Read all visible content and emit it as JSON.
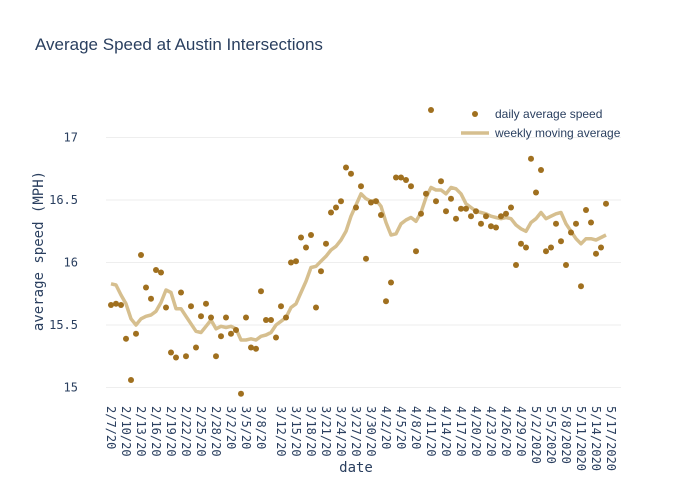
{
  "chart_data": {
    "type": "scatter",
    "title": "Average Speed at Austin Intersections",
    "xlabel": "date",
    "ylabel": "average speed (MPH)",
    "x_range": [
      "2020-02-06",
      "2020-05-19"
    ],
    "ylim": [
      14.9,
      17.3
    ],
    "y_ticks": [
      15,
      15.5,
      16,
      16.5,
      17
    ],
    "x_ticks": [
      {
        "date": "2020-02-07",
        "label": "2/7/20"
      },
      {
        "date": "2020-02-10",
        "label": "2/10/20"
      },
      {
        "date": "2020-02-13",
        "label": "2/13/20"
      },
      {
        "date": "2020-02-16",
        "label": "2/16/20"
      },
      {
        "date": "2020-02-19",
        "label": "2/19/20"
      },
      {
        "date": "2020-02-22",
        "label": "2/22/20"
      },
      {
        "date": "2020-02-25",
        "label": "2/25/20"
      },
      {
        "date": "2020-02-28",
        "label": "2/28/20"
      },
      {
        "date": "2020-03-02",
        "label": "3/2/20"
      },
      {
        "date": "2020-03-05",
        "label": "3/5/20"
      },
      {
        "date": "2020-03-08",
        "label": "3/8/20"
      },
      {
        "date": "2020-03-12",
        "label": "3/12/20"
      },
      {
        "date": "2020-03-15",
        "label": "3/15/20"
      },
      {
        "date": "2020-03-18",
        "label": "3/18/20"
      },
      {
        "date": "2020-03-21",
        "label": "3/21/20"
      },
      {
        "date": "2020-03-24",
        "label": "3/24/20"
      },
      {
        "date": "2020-03-27",
        "label": "3/27/20"
      },
      {
        "date": "2020-03-30",
        "label": "3/30/20"
      },
      {
        "date": "2020-04-02",
        "label": "4/2/20"
      },
      {
        "date": "2020-04-05",
        "label": "4/5/20"
      },
      {
        "date": "2020-04-08",
        "label": "4/8/20"
      },
      {
        "date": "2020-04-11",
        "label": "4/11/20"
      },
      {
        "date": "2020-04-14",
        "label": "4/14/20"
      },
      {
        "date": "2020-04-17",
        "label": "4/17/20"
      },
      {
        "date": "2020-04-20",
        "label": "4/20/20"
      },
      {
        "date": "2020-04-23",
        "label": "4/23/20"
      },
      {
        "date": "2020-04-26",
        "label": "4/26/20"
      },
      {
        "date": "2020-04-29",
        "label": "4/29/20"
      },
      {
        "date": "2020-05-02",
        "label": "5/2/2020"
      },
      {
        "date": "2020-05-05",
        "label": "5/5/2020"
      },
      {
        "date": "2020-05-08",
        "label": "5/8/2020"
      },
      {
        "date": "2020-05-11",
        "label": "5/11/2020"
      },
      {
        "date": "2020-05-14",
        "label": "5/14/2020"
      },
      {
        "date": "2020-05-17",
        "label": "5/17/2020"
      }
    ],
    "legend_position": "top-right",
    "series": [
      {
        "name": "daily average speed",
        "mode": "markers",
        "color": "#a0701f",
        "points": [
          [
            "2020-02-07",
            15.66
          ],
          [
            "2020-02-08",
            15.67
          ],
          [
            "2020-02-09",
            15.66
          ],
          [
            "2020-02-10",
            15.39
          ],
          [
            "2020-02-11",
            15.06
          ],
          [
            "2020-02-12",
            15.43
          ],
          [
            "2020-02-13",
            16.06
          ],
          [
            "2020-02-14",
            15.8
          ],
          [
            "2020-02-15",
            15.71
          ],
          [
            "2020-02-16",
            15.94
          ],
          [
            "2020-02-17",
            15.92
          ],
          [
            "2020-02-18",
            15.64
          ],
          [
            "2020-02-19",
            15.28
          ],
          [
            "2020-02-20",
            15.24
          ],
          [
            "2020-02-21",
            15.76
          ],
          [
            "2020-02-22",
            15.25
          ],
          [
            "2020-02-23",
            15.65
          ],
          [
            "2020-02-24",
            15.32
          ],
          [
            "2020-02-25",
            15.57
          ],
          [
            "2020-02-26",
            15.67
          ],
          [
            "2020-02-27",
            15.56
          ],
          [
            "2020-02-28",
            15.25
          ],
          [
            "2020-02-29",
            15.41
          ],
          [
            "2020-03-01",
            15.56
          ],
          [
            "2020-03-02",
            15.43
          ],
          [
            "2020-03-03",
            15.46
          ],
          [
            "2020-03-04",
            14.95
          ],
          [
            "2020-03-05",
            15.56
          ],
          [
            "2020-03-06",
            15.32
          ],
          [
            "2020-03-07",
            15.31
          ],
          [
            "2020-03-08",
            15.77
          ],
          [
            "2020-03-09",
            15.54
          ],
          [
            "2020-03-10",
            15.54
          ],
          [
            "2020-03-11",
            15.4
          ],
          [
            "2020-03-12",
            15.65
          ],
          [
            "2020-03-13",
            15.56
          ],
          [
            "2020-03-14",
            16.0
          ],
          [
            "2020-03-15",
            16.01
          ],
          [
            "2020-03-16",
            16.2
          ],
          [
            "2020-03-17",
            16.12
          ],
          [
            "2020-03-18",
            16.22
          ],
          [
            "2020-03-19",
            15.64
          ],
          [
            "2020-03-20",
            15.93
          ],
          [
            "2020-03-21",
            16.15
          ],
          [
            "2020-03-22",
            16.4
          ],
          [
            "2020-03-23",
            16.44
          ],
          [
            "2020-03-24",
            16.49
          ],
          [
            "2020-03-25",
            16.76
          ],
          [
            "2020-03-26",
            16.71
          ],
          [
            "2020-03-27",
            16.44
          ],
          [
            "2020-03-28",
            16.61
          ],
          [
            "2020-03-29",
            16.03
          ],
          [
            "2020-03-30",
            16.48
          ],
          [
            "2020-03-31",
            16.49
          ],
          [
            "2020-04-01",
            16.38
          ],
          [
            "2020-04-02",
            15.69
          ],
          [
            "2020-04-03",
            15.84
          ],
          [
            "2020-04-04",
            16.68
          ],
          [
            "2020-04-05",
            16.68
          ],
          [
            "2020-04-06",
            16.66
          ],
          [
            "2020-04-07",
            16.61
          ],
          [
            "2020-04-08",
            16.09
          ],
          [
            "2020-04-09",
            16.39
          ],
          [
            "2020-04-10",
            16.55
          ],
          [
            "2020-04-11",
            17.22
          ],
          [
            "2020-04-12",
            16.49
          ],
          [
            "2020-04-13",
            16.65
          ],
          [
            "2020-04-14",
            16.41
          ],
          [
            "2020-04-15",
            16.51
          ],
          [
            "2020-04-16",
            16.35
          ],
          [
            "2020-04-17",
            16.43
          ],
          [
            "2020-04-18",
            16.43
          ],
          [
            "2020-04-19",
            16.37
          ],
          [
            "2020-04-20",
            16.41
          ],
          [
            "2020-04-21",
            16.31
          ],
          [
            "2020-04-22",
            16.37
          ],
          [
            "2020-04-23",
            16.29
          ],
          [
            "2020-04-24",
            16.28
          ],
          [
            "2020-04-25",
            16.37
          ],
          [
            "2020-04-26",
            16.39
          ],
          [
            "2020-04-27",
            16.44
          ],
          [
            "2020-04-28",
            15.98
          ],
          [
            "2020-04-29",
            16.15
          ],
          [
            "2020-04-30",
            16.12
          ],
          [
            "2020-05-01",
            16.83
          ],
          [
            "2020-05-02",
            16.56
          ],
          [
            "2020-05-03",
            16.74
          ],
          [
            "2020-05-04",
            16.09
          ],
          [
            "2020-05-05",
            16.12
          ],
          [
            "2020-05-06",
            16.31
          ],
          [
            "2020-05-07",
            16.17
          ],
          [
            "2020-05-08",
            15.98
          ],
          [
            "2020-05-09",
            16.24
          ],
          [
            "2020-05-10",
            16.31
          ],
          [
            "2020-05-11",
            15.81
          ],
          [
            "2020-05-12",
            16.42
          ],
          [
            "2020-05-13",
            16.32
          ],
          [
            "2020-05-14",
            16.07
          ],
          [
            "2020-05-15",
            16.12
          ],
          [
            "2020-05-16",
            16.47
          ]
        ]
      },
      {
        "name": "weekly moving average",
        "mode": "lines",
        "color": "#d6bf8f",
        "points": [
          [
            "2020-02-07",
            15.83
          ],
          [
            "2020-02-08",
            15.82
          ],
          [
            "2020-02-09",
            15.74
          ],
          [
            "2020-02-10",
            15.67
          ],
          [
            "2020-02-11",
            15.55
          ],
          [
            "2020-02-12",
            15.5
          ],
          [
            "2020-02-13",
            15.55
          ],
          [
            "2020-02-14",
            15.57
          ],
          [
            "2020-02-15",
            15.58
          ],
          [
            "2020-02-16",
            15.61
          ],
          [
            "2020-02-17",
            15.68
          ],
          [
            "2020-02-18",
            15.78
          ],
          [
            "2020-02-19",
            15.76
          ],
          [
            "2020-02-20",
            15.63
          ],
          [
            "2020-02-21",
            15.63
          ],
          [
            "2020-02-22",
            15.57
          ],
          [
            "2020-02-23",
            15.51
          ],
          [
            "2020-02-24",
            15.45
          ],
          [
            "2020-02-25",
            15.44
          ],
          [
            "2020-02-26",
            15.49
          ],
          [
            "2020-02-27",
            15.54
          ],
          [
            "2020-02-28",
            15.47
          ],
          [
            "2020-02-29",
            15.49
          ],
          [
            "2020-03-01",
            15.48
          ],
          [
            "2020-03-02",
            15.49
          ],
          [
            "2020-03-03",
            15.47
          ],
          [
            "2020-03-04",
            15.38
          ],
          [
            "2020-03-05",
            15.38
          ],
          [
            "2020-03-06",
            15.39
          ],
          [
            "2020-03-07",
            15.38
          ],
          [
            "2020-03-08",
            15.41
          ],
          [
            "2020-03-09",
            15.42
          ],
          [
            "2020-03-10",
            15.44
          ],
          [
            "2020-03-11",
            15.5
          ],
          [
            "2020-03-12",
            15.53
          ],
          [
            "2020-03-13",
            15.56
          ],
          [
            "2020-03-14",
            15.64
          ],
          [
            "2020-03-15",
            15.67
          ],
          [
            "2020-03-16",
            15.76
          ],
          [
            "2020-03-17",
            15.85
          ],
          [
            "2020-03-18",
            15.96
          ],
          [
            "2020-03-19",
            15.97
          ],
          [
            "2020-03-20",
            16.01
          ],
          [
            "2020-03-21",
            16.05
          ],
          [
            "2020-03-22",
            16.1
          ],
          [
            "2020-03-23",
            16.13
          ],
          [
            "2020-03-24",
            16.18
          ],
          [
            "2020-03-25",
            16.25
          ],
          [
            "2020-03-26",
            16.37
          ],
          [
            "2020-03-27",
            16.46
          ],
          [
            "2020-03-28",
            16.55
          ],
          [
            "2020-03-29",
            16.51
          ],
          [
            "2020-03-30",
            16.49
          ],
          [
            "2020-03-31",
            16.5
          ],
          [
            "2020-04-01",
            16.45
          ],
          [
            "2020-04-02",
            16.32
          ],
          [
            "2020-04-03",
            16.22
          ],
          [
            "2020-04-04",
            16.23
          ],
          [
            "2020-04-05",
            16.31
          ],
          [
            "2020-04-06",
            16.34
          ],
          [
            "2020-04-07",
            16.36
          ],
          [
            "2020-04-08",
            16.33
          ],
          [
            "2020-04-09",
            16.4
          ],
          [
            "2020-04-10",
            16.52
          ],
          [
            "2020-04-11",
            16.6
          ],
          [
            "2020-04-12",
            16.58
          ],
          [
            "2020-04-13",
            16.58
          ],
          [
            "2020-04-14",
            16.55
          ],
          [
            "2020-04-15",
            16.6
          ],
          [
            "2020-04-16",
            16.59
          ],
          [
            "2020-04-17",
            16.55
          ],
          [
            "2020-04-18",
            16.47
          ],
          [
            "2020-04-19",
            16.44
          ],
          [
            "2020-04-20",
            16.41
          ],
          [
            "2020-04-21",
            16.4
          ],
          [
            "2020-04-22",
            16.39
          ],
          [
            "2020-04-23",
            16.37
          ],
          [
            "2020-04-24",
            16.36
          ],
          [
            "2020-04-25",
            16.35
          ],
          [
            "2020-04-26",
            16.36
          ],
          [
            "2020-04-27",
            16.35
          ],
          [
            "2020-04-28",
            16.3
          ],
          [
            "2020-04-29",
            16.27
          ],
          [
            "2020-04-30",
            16.25
          ],
          [
            "2020-05-01",
            16.32
          ],
          [
            "2020-05-02",
            16.35
          ],
          [
            "2020-05-03",
            16.4
          ],
          [
            "2020-05-04",
            16.35
          ],
          [
            "2020-05-05",
            16.37
          ],
          [
            "2020-05-06",
            16.39
          ],
          [
            "2020-05-07",
            16.4
          ],
          [
            "2020-05-08",
            16.31
          ],
          [
            "2020-05-09",
            16.25
          ],
          [
            "2020-05-10",
            16.19
          ],
          [
            "2020-05-11",
            16.15
          ],
          [
            "2020-05-12",
            16.19
          ],
          [
            "2020-05-13",
            16.19
          ],
          [
            "2020-05-14",
            16.18
          ],
          [
            "2020-05-15",
            16.2
          ],
          [
            "2020-05-16",
            16.22
          ]
        ]
      }
    ]
  }
}
